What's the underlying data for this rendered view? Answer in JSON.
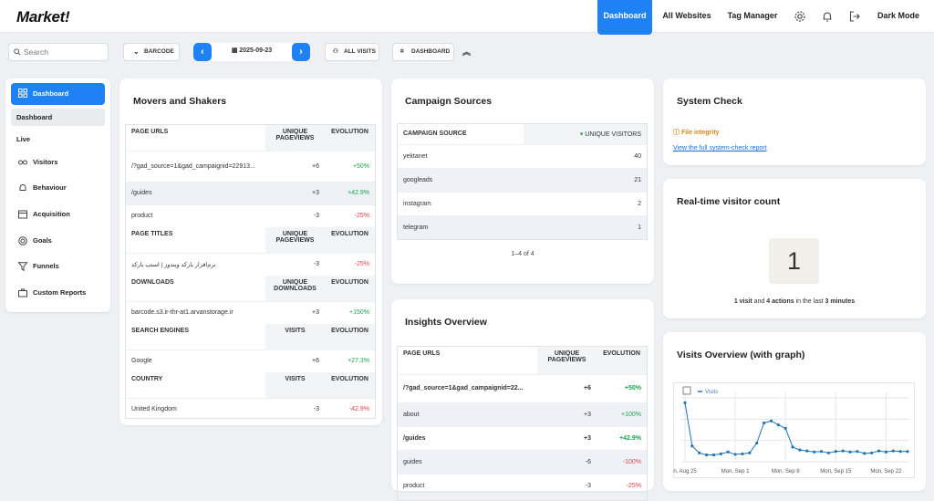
{
  "topbar": {
    "logo": "Market!",
    "nav": [
      "Dashboard",
      "All Websites",
      "Tag Manager"
    ],
    "dark_mode": "Dark Mode"
  },
  "toolbar": {
    "search_placeholder": "Search",
    "barcode": "BARCODE",
    "date": "2025-09-23",
    "all_visits": "ALL VISITS",
    "dashboard": "DASHBOARD"
  },
  "sidebar": {
    "items": [
      {
        "label": "Dashboard",
        "icon": "grid-icon"
      },
      {
        "label": "Dashboard",
        "icon": ""
      },
      {
        "label": "Live",
        "icon": ""
      },
      {
        "label": "Visitors",
        "icon": "glasses-icon"
      },
      {
        "label": "Behaviour",
        "icon": "bell-icon"
      },
      {
        "label": "Acquisition",
        "icon": "window-icon"
      },
      {
        "label": "Goals",
        "icon": "target-icon"
      },
      {
        "label": "Funnels",
        "icon": "funnel-icon"
      },
      {
        "label": "Custom Reports",
        "icon": "briefcase-icon"
      }
    ]
  },
  "movers": {
    "title": "Movers and Shakers",
    "sections": [
      {
        "header": "PAGE URLS",
        "col1": "UNIQUE PAGEVIEWS",
        "col2": "EVOLUTION",
        "rows": [
          [
            "/?gad_source=1&gad_campaignid=22913...",
            "+6",
            "+50%"
          ],
          [
            "/guides",
            "+3",
            "+42.9%"
          ],
          [
            "product",
            "-3",
            "-25%"
          ]
        ]
      },
      {
        "header": "PAGE TITLES",
        "col1": "UNIQUE PAGEVIEWS",
        "col2": "EVOLUTION",
        "rows": [
          [
            "نرم‌افزار بارکد ویندوز | استپ بارکد",
            "-3",
            "-25%"
          ]
        ]
      },
      {
        "header": "DOWNLOADS",
        "col1": "UNIQUE DOWNLOADS",
        "col2": "EVOLUTION",
        "rows": [
          [
            "barcode.s3.ir-thr-at1.arvanstorage.ir",
            "+3",
            "+150%"
          ]
        ]
      },
      {
        "header": "SEARCH ENGINES",
        "col1": "VISITS",
        "col2": "EVOLUTION",
        "rows": [
          [
            "Google",
            "+6",
            "+27.3%"
          ]
        ]
      },
      {
        "header": "COUNTRY",
        "col1": "VISITS",
        "col2": "EVOLUTION",
        "rows": [
          [
            "United Kingdom",
            "-3",
            "-42.9%"
          ]
        ]
      }
    ]
  },
  "campaign": {
    "title": "Campaign Sources",
    "col0": "CAMPAIGN SOURCE",
    "col1": "UNIQUE VISITORS",
    "rows": [
      [
        "yektanet",
        "40"
      ],
      [
        "googleads",
        "21"
      ],
      [
        "instagram",
        "2"
      ],
      [
        "telegram",
        "1"
      ]
    ],
    "pagination": "1–4 of 4"
  },
  "insights": {
    "title": "Insights Overview",
    "col0": "PAGE URLS",
    "col1": "UNIQUE PAGEVIEWS",
    "col2": "EVOLUTION",
    "rows": [
      [
        "/?gad_source=1&gad_campaignid=22...",
        "+6",
        "+50%"
      ],
      [
        "about",
        "+3",
        "+100%"
      ],
      [
        "/guides",
        "+3",
        "+42.9%"
      ],
      [
        "guides",
        "-6",
        "-100%"
      ],
      [
        "product",
        "-3",
        "-25%"
      ]
    ]
  },
  "system": {
    "title": "System Check",
    "item": "File integrity",
    "link": "View the full system-check report"
  },
  "realtime": {
    "title": "Real-time visitor count",
    "count": "1",
    "visits": "1 visit",
    "and": "and",
    "actions": "4 actions",
    "in_last": "in the last",
    "minutes": "3 minutes"
  },
  "visits_overview": {
    "title": "Visits Overview (with graph)",
    "legend": "Visits"
  },
  "chart_data": {
    "type": "line",
    "series": [
      {
        "name": "Visits",
        "values": [
          12,
          3.2,
          1.8,
          1.4,
          1.4,
          1.6,
          2.0,
          1.5,
          1.6,
          1.8,
          3.8,
          7.9,
          8.3,
          7.5,
          6.8,
          3.0,
          2.4,
          2.2,
          2.0,
          2.1,
          1.8,
          2.1,
          2.2,
          2.0,
          2.1,
          1.7,
          1.8,
          2.2,
          2.0,
          2.2,
          2.1,
          2.1
        ]
      }
    ],
    "x_ticks": [
      "n, Aug 25",
      "Mon, Sep 1",
      "Mon, Sep 8",
      "Mon, Sep 15",
      "Mon, Sep 22"
    ],
    "color": "#1f77b4",
    "grid": true,
    "legend": "top-left"
  }
}
